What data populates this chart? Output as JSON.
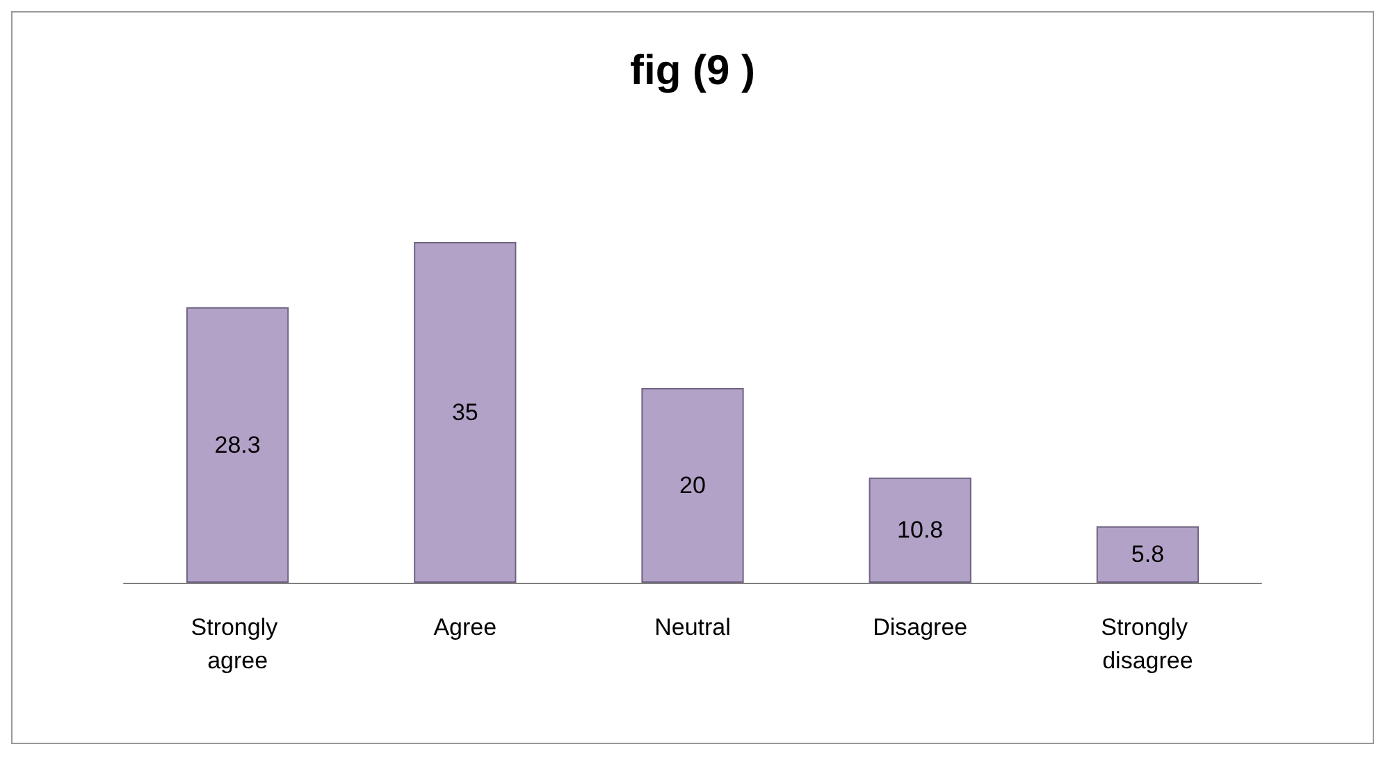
{
  "chart_data": {
    "type": "bar",
    "title": "fig (9 )",
    "categories": [
      "Strongly agree",
      "Agree",
      "Neutral",
      "Disagree",
      "Strongly disagree"
    ],
    "values": [
      28.3,
      35,
      20,
      10.8,
      5.8
    ],
    "color": "#b3a2c7",
    "data_labels": true
  }
}
